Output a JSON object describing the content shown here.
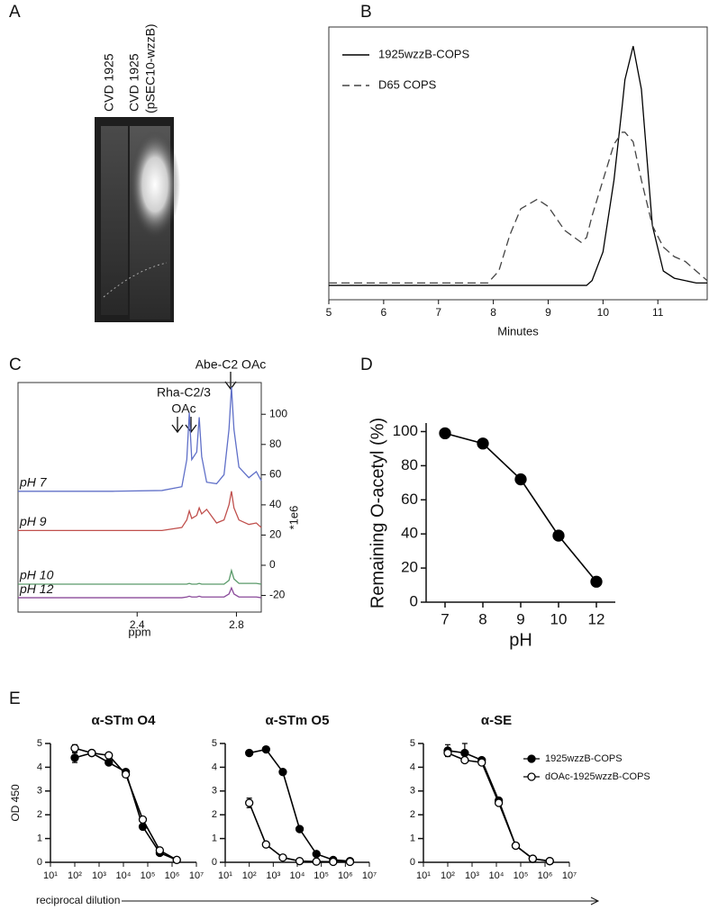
{
  "chart_data": [
    {
      "type": "gel",
      "panel": "A",
      "lanes": [
        [
          "CVD 1925"
        ],
        [
          "CVD 1925",
          "(pSEC10-wzzB)"
        ]
      ]
    },
    {
      "type": "line",
      "panel": "B",
      "xlabel": "Minutes",
      "frame": "box",
      "legend": "upper left",
      "x": [
        5,
        7.9,
        8.1,
        8.3,
        8.5,
        8.8,
        9.0,
        9.3,
        9.6,
        9.7,
        9.8,
        10.0,
        10.2,
        10.35,
        10.4,
        10.55,
        10.7,
        10.9,
        11.1,
        11.3,
        11.5,
        11.7,
        11.9
      ],
      "xlim": [
        5,
        11.9
      ],
      "xticks": [
        5,
        6,
        7,
        8,
        9,
        10,
        11
      ],
      "ylim": [
        -6,
        108
      ],
      "series": [
        {
          "name": "1925wzzB-COPS",
          "color": "#000000",
          "style": "solid",
          "values": [
            0,
            0,
            0,
            0,
            0,
            0,
            0,
            0,
            0,
            0,
            2,
            14,
            44,
            75,
            86,
            100,
            82,
            25,
            6,
            3,
            2,
            1,
            1
          ]
        },
        {
          "name": "D65 COPS",
          "color": "#444444",
          "style": "dashed",
          "values": [
            1,
            1,
            6,
            21,
            32,
            36,
            33,
            23,
            18,
            20,
            29,
            44,
            59,
            64,
            64,
            60,
            44,
            25,
            16,
            12,
            10,
            6,
            2
          ]
        }
      ]
    },
    {
      "type": "line",
      "panel": "C",
      "xlabel": "ppm",
      "ylabel": "*1e6",
      "frame": "box",
      "yaxis": "right",
      "legend": "inline",
      "annotations": [
        [
          "Abe-C2 OAc"
        ],
        [
          "Rha-C2/3",
          "OAc"
        ]
      ],
      "x": [
        1.92,
        2.3,
        2.5,
        2.58,
        2.6,
        2.61,
        2.62,
        2.64,
        2.65,
        2.66,
        2.68,
        2.72,
        2.75,
        2.77,
        2.78,
        2.79,
        2.81,
        2.85,
        2.88,
        2.9
      ],
      "xlim": [
        1.92,
        2.9
      ],
      "xticks": [
        2.4,
        2.8
      ],
      "ylim": [
        -31,
        121
      ],
      "yticks": [
        -20,
        0,
        20,
        40,
        60,
        80,
        100
      ],
      "series": [
        {
          "name": "pH 7",
          "color": "#6070c8",
          "values": [
            49,
            49,
            49.5,
            52,
            70,
            101,
            70,
            75,
            98,
            72,
            55,
            54,
            60,
            90,
            118,
            90,
            65,
            58,
            62,
            56
          ]
        },
        {
          "name": "pH 9",
          "color": "#c0504d",
          "values": [
            23,
            23,
            23,
            25,
            30,
            36,
            31,
            33,
            38,
            34,
            37,
            28,
            30,
            40,
            49,
            38,
            30,
            27,
            28,
            25
          ]
        },
        {
          "name": "pH 10",
          "color": "#5a9a6a",
          "values": [
            -12.5,
            -12.5,
            -12.5,
            -12.5,
            -12.5,
            -12,
            -12.5,
            -12.5,
            -12,
            -12.5,
            -12.5,
            -12.5,
            -12.5,
            -10,
            -3.5,
            -9,
            -12,
            -12,
            -12,
            -12.5
          ]
        },
        {
          "name": "pH 12",
          "color": "#8a4a9a",
          "values": [
            -21.5,
            -21.5,
            -21.5,
            -21.5,
            -21,
            -20.5,
            -21,
            -21,
            -20.5,
            -21,
            -21,
            -21,
            -21,
            -19,
            -15,
            -19,
            -21,
            -21,
            -21,
            -21.5
          ]
        }
      ]
    },
    {
      "type": "line",
      "panel": "D",
      "xlabel": "pH",
      "ylabel": "Remaining O-acetyl (%)",
      "frame": "axes",
      "categories": [
        "7",
        "8",
        "9",
        "10",
        "12"
      ],
      "values": [
        99,
        93,
        72,
        39,
        12
      ],
      "color": "#000000",
      "marker": "filled",
      "ylim": [
        0,
        105
      ],
      "yticks": [
        0,
        20,
        40,
        60,
        80,
        100
      ]
    },
    {
      "type": "line",
      "panel": "E",
      "title": "α-STm O4",
      "ylabel": "OD 450",
      "xlabel": "reciprocal dilution",
      "frame": "axes",
      "xscale": "log",
      "x": [
        100,
        500,
        2500,
        12500,
        62500,
        312500,
        1562500
      ],
      "xlim": [
        10,
        10000000
      ],
      "xticks": [
        {
          "value": 10,
          "label": "10¹"
        },
        {
          "value": 100,
          "label": "10²"
        },
        {
          "value": 1000,
          "label": "10³"
        },
        {
          "value": 10000,
          "label": "10⁴"
        },
        {
          "value": 100000,
          "label": "10⁵"
        },
        {
          "value": 1000000,
          "label": "10⁶"
        },
        {
          "value": 10000000,
          "label": "10⁷"
        }
      ],
      "ylim": [
        0,
        5
      ],
      "yticks": [
        0,
        1,
        2,
        3,
        4,
        5
      ],
      "series": [
        {
          "color": "#000000",
          "marker": "filled",
          "values": [
            4.4,
            4.6,
            4.2,
            3.8,
            1.5,
            0.4,
            0.1
          ],
          "errors": [
            0.2,
            0.1,
            0.1,
            null,
            null,
            null,
            null
          ]
        },
        {
          "color": "#000000",
          "marker": "open",
          "values": [
            4.8,
            4.6,
            4.5,
            3.7,
            1.8,
            0.5,
            0.1
          ],
          "errors": [
            0.15,
            null,
            null,
            null,
            null,
            null,
            null
          ]
        }
      ]
    },
    {
      "type": "line",
      "title": "α-STm O5",
      "frame": "axes",
      "xscale": "log",
      "x": [
        100,
        500,
        2500,
        12500,
        62500,
        312500,
        1562500
      ],
      "xlim": [
        10,
        10000000
      ],
      "xticks": [
        {
          "value": 10,
          "label": "10¹"
        },
        {
          "value": 100,
          "label": "10²"
        },
        {
          "value": 1000,
          "label": "10³"
        },
        {
          "value": 10000,
          "label": "10⁴"
        },
        {
          "value": 100000,
          "label": "10⁵"
        },
        {
          "value": 1000000,
          "label": "10⁶"
        },
        {
          "value": 10000000,
          "label": "10⁷"
        }
      ],
      "ylim": [
        0,
        5
      ],
      "yticks": [
        0,
        1,
        2,
        3,
        4,
        5
      ],
      "series": [
        {
          "color": "#000000",
          "marker": "filled",
          "values": [
            4.6,
            4.75,
            3.8,
            1.4,
            0.35,
            0.1,
            0.05
          ]
        },
        {
          "color": "#000000",
          "marker": "open",
          "values": [
            2.5,
            0.75,
            0.2,
            0.05,
            0.03,
            0.02,
            0.02
          ],
          "errors": [
            0.2,
            null,
            null,
            null,
            null,
            null,
            null
          ]
        }
      ]
    },
    {
      "type": "line",
      "title": "α-SE",
      "frame": "axes",
      "xscale": "log",
      "legend": "upper right",
      "x": [
        100,
        500,
        2500,
        12500,
        62500,
        312500,
        1562500
      ],
      "xlim": [
        10,
        10000000
      ],
      "xticks": [
        {
          "value": 10,
          "label": "10¹"
        },
        {
          "value": 100,
          "label": "10²"
        },
        {
          "value": 1000,
          "label": "10³"
        },
        {
          "value": 10000,
          "label": "10⁴"
        },
        {
          "value": 100000,
          "label": "10⁵"
        },
        {
          "value": 1000000,
          "label": "10⁶"
        },
        {
          "value": 10000000,
          "label": "10⁷"
        }
      ],
      "ylim": [
        0,
        5
      ],
      "yticks": [
        0,
        1,
        2,
        3,
        4,
        5
      ],
      "series": [
        {
          "name": "1925wzzB-COPS",
          "color": "#000000",
          "marker": "filled",
          "values": [
            4.7,
            4.6,
            4.3,
            2.6,
            0.7,
            0.15,
            0.05
          ],
          "errors": [
            0.25,
            0.4,
            null,
            null,
            null,
            null,
            null
          ]
        },
        {
          "name": "dOAc-1925wzzB-COPS",
          "color": "#000000",
          "marker": "open",
          "values": [
            4.6,
            4.3,
            4.2,
            2.5,
            0.7,
            0.15,
            0.05
          ]
        }
      ]
    }
  ]
}
